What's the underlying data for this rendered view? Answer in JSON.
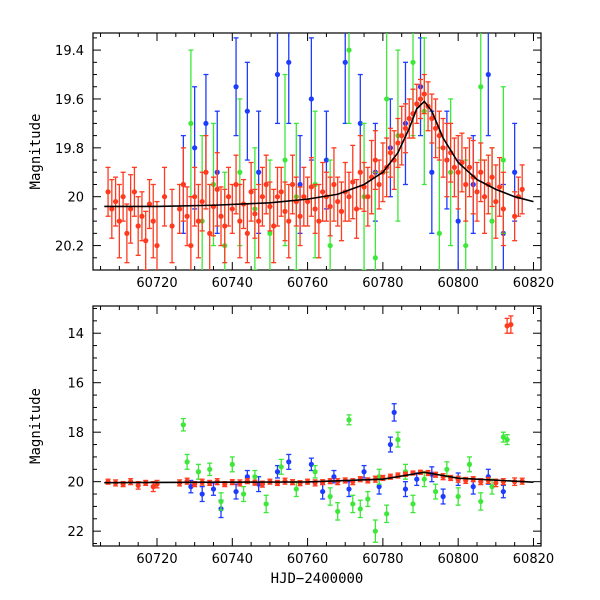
{
  "chart_data": [
    {
      "type": "scatter",
      "panel": "top",
      "xlabel": "",
      "ylabel": "Magnitude",
      "xlim": [
        60703,
        60822
      ],
      "ylim": [
        20.3,
        19.33
      ],
      "y_inverted": true,
      "x_ticks": [
        60720,
        60740,
        60760,
        60780,
        60800,
        60820
      ],
      "x_tick_labels": [
        "60720",
        "60740",
        "60760",
        "60780",
        "60800",
        "60820"
      ],
      "y_ticks": [
        19.4,
        19.6,
        19.8,
        20,
        20.2
      ],
      "y_tick_labels": [
        "19.4",
        "19.6",
        "19.8",
        "20",
        "20.2"
      ],
      "model_curve": {
        "x": [
          60706,
          60720,
          60735,
          60750,
          60760,
          60768,
          60775,
          60780,
          60784,
          60787,
          60789,
          60791,
          60793,
          60796,
          60800,
          60805,
          60810,
          60815,
          60820
        ],
        "y": [
          20.04,
          20.04,
          20.035,
          20.025,
          20.01,
          19.99,
          19.95,
          19.9,
          19.82,
          19.72,
          19.64,
          19.61,
          19.65,
          19.76,
          19.86,
          19.93,
          19.97,
          20.0,
          20.02
        ]
      },
      "series": [
        {
          "color": "#ff3a1e",
          "x": [
            60707,
            60708,
            60709,
            60710,
            60711,
            60712,
            60713,
            60714,
            60715,
            60716,
            60717,
            60718,
            60719,
            60720,
            60722,
            60724,
            60726,
            60727,
            60728,
            60729,
            60730,
            60731,
            60732,
            60733,
            60734,
            60735,
            60736,
            60737,
            60738,
            60739,
            60740,
            60741,
            60742,
            60743,
            60744,
            60745,
            60746,
            60747,
            60748,
            60749,
            60750,
            60751,
            60752,
            60753,
            60754,
            60755,
            60756,
            60757,
            60758,
            60759,
            60760,
            60761,
            60762,
            60763,
            60764,
            60765,
            60766,
            60767,
            60768,
            60769,
            60770,
            60771,
            60772,
            60773,
            60774,
            60775,
            60776,
            60777,
            60778,
            60779,
            60780,
            60781,
            60782,
            60783,
            60784,
            60785,
            60786,
            60787,
            60788,
            60789,
            60790,
            60791,
            60792,
            60793,
            60794,
            60795,
            60796,
            60797,
            60798,
            60799,
            60800,
            60801,
            60802,
            60803,
            60804,
            60805,
            60806,
            60807,
            60808,
            60809,
            60810,
            60811,
            60812,
            60815,
            60816,
            60817
          ],
          "y": [
            19.98,
            20.05,
            20.02,
            20.1,
            20.0,
            20.15,
            20.05,
            19.98,
            20.12,
            20.08,
            20.18,
            20.03,
            20.1,
            20.2,
            20.0,
            20.12,
            20.05,
            19.95,
            20.08,
            20.2,
            20.0,
            20.1,
            20.02,
            19.9,
            20.15,
            20.04,
            19.97,
            20.08,
            20.12,
            20.0,
            20.05,
            19.95,
            20.1,
            20.03,
            20.15,
            19.98,
            20.07,
            20.1,
            20.0,
            19.95,
            20.04,
            20.12,
            20.0,
            19.98,
            20.06,
            20.1,
            19.95,
            20.02,
            20.08,
            20.0,
            20.02,
            19.96,
            20.05,
            20.1,
            19.98,
            20.0,
            20.04,
            19.95,
            20.02,
            20.06,
            19.98,
            20.0,
            19.94,
            20.05,
            19.9,
            19.96,
            20.0,
            19.92,
            19.85,
            19.95,
            19.9,
            19.88,
            19.82,
            19.85,
            19.78,
            19.75,
            19.72,
            19.68,
            19.66,
            19.62,
            19.6,
            19.58,
            19.63,
            19.68,
            19.72,
            19.75,
            19.8,
            19.85,
            19.82,
            19.88,
            19.9,
            19.86,
            19.95,
            19.88,
            19.92,
            19.98,
            19.9,
            20.0,
            19.95,
            19.92,
            20.02,
            19.96,
            20.05,
            20.08,
            20.0,
            19.97
          ],
          "err": [
            0.1,
            0.12,
            0.1,
            0.15,
            0.1,
            0.12,
            0.14,
            0.1,
            0.12,
            0.1,
            0.12,
            0.1,
            0.15,
            0.18,
            0.12,
            0.15,
            0.1,
            0.15,
            0.12,
            0.2,
            0.12,
            0.15,
            0.12,
            0.15,
            0.2,
            0.12,
            0.15,
            0.12,
            0.15,
            0.12,
            0.1,
            0.12,
            0.15,
            0.1,
            0.12,
            0.12,
            0.1,
            0.15,
            0.12,
            0.12,
            0.1,
            0.15,
            0.12,
            0.1,
            0.12,
            0.15,
            0.12,
            0.1,
            0.12,
            0.12,
            0.1,
            0.12,
            0.1,
            0.15,
            0.12,
            0.1,
            0.12,
            0.15,
            0.1,
            0.12,
            0.12,
            0.1,
            0.15,
            0.12,
            0.15,
            0.1,
            0.12,
            0.15,
            0.12,
            0.1,
            0.12,
            0.12,
            0.1,
            0.12,
            0.1,
            0.12,
            0.1,
            0.08,
            0.1,
            0.08,
            0.08,
            0.08,
            0.1,
            0.1,
            0.12,
            0.1,
            0.12,
            0.15,
            0.12,
            0.12,
            0.15,
            0.12,
            0.15,
            0.12,
            0.15,
            0.12,
            0.12,
            0.15,
            0.12,
            0.12,
            0.15,
            0.12,
            0.15,
            0.1,
            0.08,
            0.1
          ]
        },
        {
          "color": "#1e3cff",
          "x": [
            60727,
            60730,
            60733,
            60736,
            60741,
            60744,
            60747,
            60752,
            60755,
            60758,
            60761,
            60765,
            60770,
            60774,
            60778,
            60782,
            60786,
            60790,
            60793,
            60797,
            60800,
            60804,
            60808,
            60812,
            60815
          ],
          "y": [
            19.95,
            19.8,
            19.7,
            19.9,
            19.55,
            19.65,
            19.9,
            19.5,
            19.45,
            19.95,
            19.6,
            19.85,
            19.45,
            19.7,
            19.9,
            19.8,
            19.7,
            19.55,
            19.9,
            19.85,
            20.1,
            19.95,
            19.5,
            20.15,
            19.9
          ],
          "err": [
            0.2,
            0.25,
            0.2,
            0.25,
            0.2,
            0.2,
            0.25,
            0.2,
            0.25,
            0.2,
            0.25,
            0.2,
            0.25,
            0.2,
            0.2,
            0.2,
            0.25,
            0.2,
            0.25,
            0.2,
            0.25,
            0.2,
            0.25,
            0.2,
            0.2
          ]
        },
        {
          "color": "#3ee83a",
          "x": [
            60729,
            60732,
            60735,
            60738,
            60742,
            60746,
            60750,
            60754,
            60757,
            60762,
            60766,
            60771,
            60775,
            60778,
            60781,
            60784,
            60788,
            60791,
            60795,
            60798,
            60802,
            60806,
            60809,
            60812
          ],
          "y": [
            19.7,
            20.1,
            19.95,
            20.2,
            19.9,
            20.05,
            20.15,
            19.85,
            20.0,
            19.95,
            20.2,
            19.4,
            20.0,
            20.25,
            19.6,
            19.75,
            19.45,
            19.65,
            20.15,
            19.9,
            20.2,
            19.55,
            20.1,
            19.85
          ],
          "err": [
            0.3,
            0.35,
            0.25,
            0.3,
            0.3,
            0.25,
            0.3,
            0.35,
            0.3,
            0.3,
            0.35,
            0.3,
            0.3,
            0.35,
            0.3,
            0.35,
            0.3,
            0.3,
            0.35,
            0.3,
            0.35,
            0.3,
            0.3,
            0.3
          ]
        }
      ]
    },
    {
      "type": "scatter",
      "panel": "bottom",
      "xlabel": "HJD−2400000",
      "ylabel": "Magnitude",
      "xlim": [
        60703,
        60822
      ],
      "ylim": [
        22.6,
        12.9
      ],
      "y_inverted": true,
      "x_ticks": [
        60720,
        60740,
        60760,
        60780,
        60800,
        60820
      ],
      "x_tick_labels": [
        "60720",
        "60740",
        "60760",
        "60780",
        "60800",
        "60820"
      ],
      "y_ticks": [
        14,
        16,
        18,
        20,
        22
      ],
      "y_tick_labels": [
        "14",
        "16",
        "18",
        "20",
        "22"
      ],
      "model_curve": {
        "x": [
          60706,
          60760,
          60780,
          60791,
          60800,
          60820
        ],
        "y": [
          20.04,
          20.01,
          19.9,
          19.62,
          19.86,
          20.02
        ]
      },
      "series": [
        {
          "color": "#ff3a1e",
          "x": [
            60707,
            60709,
            60711,
            60713,
            60715,
            60717,
            60719,
            60720,
            60726,
            60728,
            60730,
            60732,
            60734,
            60736,
            60738,
            60740,
            60742,
            60744,
            60746,
            60748,
            60750,
            60752,
            60754,
            60756,
            60758,
            60760,
            60762,
            60764,
            60766,
            60768,
            60770,
            60772,
            60774,
            60776,
            60778,
            60780,
            60782,
            60784,
            60786,
            60788,
            60790,
            60792,
            60794,
            60796,
            60798,
            60800,
            60802,
            60804,
            60806,
            60808,
            60810,
            60812,
            60813,
            60814,
            60815,
            60817
          ],
          "y": [
            20.0,
            20.05,
            20.1,
            20.0,
            20.15,
            20.05,
            20.2,
            20.1,
            20.05,
            19.98,
            20.1,
            20.02,
            20.05,
            20.0,
            20.1,
            20.02,
            20.05,
            19.98,
            20.04,
            20.1,
            20.0,
            20.05,
            19.98,
            20.02,
            20.06,
            20.0,
            20.05,
            20.02,
            19.98,
            20.0,
            19.95,
            20.0,
            19.9,
            19.95,
            19.9,
            19.85,
            19.8,
            19.75,
            19.7,
            19.65,
            19.62,
            19.65,
            19.72,
            19.8,
            19.85,
            19.9,
            19.95,
            19.9,
            20.0,
            19.95,
            20.05,
            20.0,
            13.7,
            13.65,
            20.0,
            19.98
          ],
          "err": [
            0.1,
            0.12,
            0.1,
            0.12,
            0.15,
            0.1,
            0.2,
            0.15,
            0.12,
            0.12,
            0.1,
            0.12,
            0.1,
            0.12,
            0.1,
            0.1,
            0.12,
            0.1,
            0.1,
            0.12,
            0.1,
            0.1,
            0.12,
            0.1,
            0.1,
            0.1,
            0.12,
            0.1,
            0.1,
            0.12,
            0.1,
            0.12,
            0.1,
            0.1,
            0.12,
            0.1,
            0.1,
            0.1,
            0.08,
            0.08,
            0.08,
            0.1,
            0.1,
            0.12,
            0.1,
            0.12,
            0.12,
            0.1,
            0.12,
            0.12,
            0.15,
            0.12,
            0.3,
            0.35,
            0.15,
            0.12
          ]
        },
        {
          "color": "#1e3cff",
          "x": [
            60729,
            60732,
            60735,
            60737,
            60741,
            60744,
            60747,
            60752,
            60755,
            60761,
            60764,
            60767,
            60771,
            60775,
            60779,
            60782,
            60783,
            60786,
            60789,
            60793,
            60796,
            60800,
            60804,
            60808,
            60812
          ],
          "y": [
            20.2,
            20.5,
            20.3,
            21.1,
            20.4,
            19.8,
            20.1,
            19.6,
            19.2,
            19.3,
            20.4,
            19.8,
            20.3,
            19.6,
            20.2,
            18.5,
            17.2,
            20.3,
            19.9,
            19.7,
            20.6,
            19.9,
            20.2,
            19.8,
            20.4
          ],
          "err": [
            0.25,
            0.3,
            0.25,
            0.35,
            0.3,
            0.25,
            0.3,
            0.25,
            0.3,
            0.25,
            0.3,
            0.25,
            0.3,
            0.25,
            0.3,
            0.3,
            0.35,
            0.3,
            0.25,
            0.3,
            0.3,
            0.25,
            0.3,
            0.3,
            0.25
          ]
        },
        {
          "color": "#3ee83a",
          "x": [
            60727,
            60728,
            60731,
            60734,
            60737,
            60740,
            60743,
            60746,
            60749,
            60753,
            60757,
            60762,
            60766,
            60768,
            60771,
            60772,
            60774,
            60776,
            60778,
            60779,
            60781,
            60784,
            60786,
            60788,
            60791,
            60794,
            60797,
            60800,
            60803,
            60806,
            60809,
            60812,
            60813
          ],
          "y": [
            17.7,
            19.2,
            19.6,
            19.5,
            20.8,
            19.3,
            20.5,
            19.8,
            20.9,
            19.4,
            20.3,
            19.6,
            20.6,
            21.2,
            17.5,
            20.9,
            21.1,
            20.7,
            22.0,
            19.8,
            21.3,
            18.3,
            19.6,
            20.9,
            19.9,
            20.4,
            19.5,
            20.6,
            19.3,
            20.8,
            20.2,
            18.2,
            18.3
          ],
          "err": [
            0.25,
            0.3,
            0.3,
            0.25,
            0.35,
            0.3,
            0.3,
            0.25,
            0.35,
            0.3,
            0.3,
            0.25,
            0.35,
            0.35,
            0.2,
            0.35,
            0.35,
            0.3,
            0.45,
            0.3,
            0.35,
            0.3,
            0.3,
            0.35,
            0.3,
            0.3,
            0.3,
            0.35,
            0.3,
            0.35,
            0.3,
            0.2,
            0.2
          ]
        }
      ]
    }
  ]
}
